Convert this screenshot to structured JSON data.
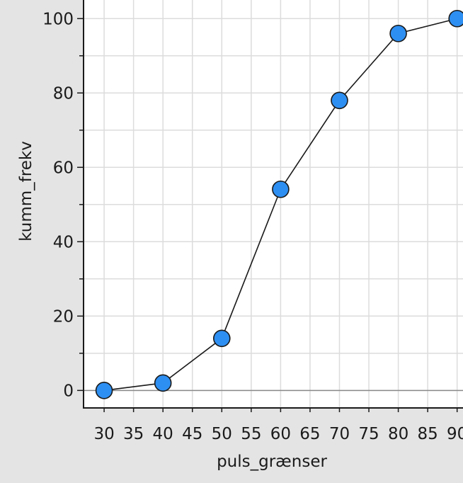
{
  "chart_data": {
    "type": "line",
    "title": "",
    "xlabel": "puls_grænser",
    "ylabel": "kumm_frekv",
    "xlim": [
      26.5,
      91
    ],
    "ylim": [
      -4.7,
      105
    ],
    "x_ticks": [
      30,
      35,
      40,
      45,
      50,
      55,
      60,
      65,
      70,
      75,
      80,
      85,
      90
    ],
    "y_ticks": [
      0,
      20,
      40,
      60,
      80,
      100
    ],
    "grid": true,
    "legend": "none",
    "colors": {
      "background": "#e4e4e4",
      "plot_area": "#ffffff",
      "grid": "#dcdcdc",
      "zero_line": "#8a8a8a",
      "line": "#1a1a1a",
      "marker_fill": "#2e8ff2",
      "marker_stroke": "#1a1a1a"
    },
    "series": [
      {
        "x": [
          30,
          40,
          50,
          60,
          70,
          80,
          90
        ],
        "values": [
          0,
          2,
          14,
          54.1,
          78,
          96,
          100
        ]
      }
    ]
  }
}
